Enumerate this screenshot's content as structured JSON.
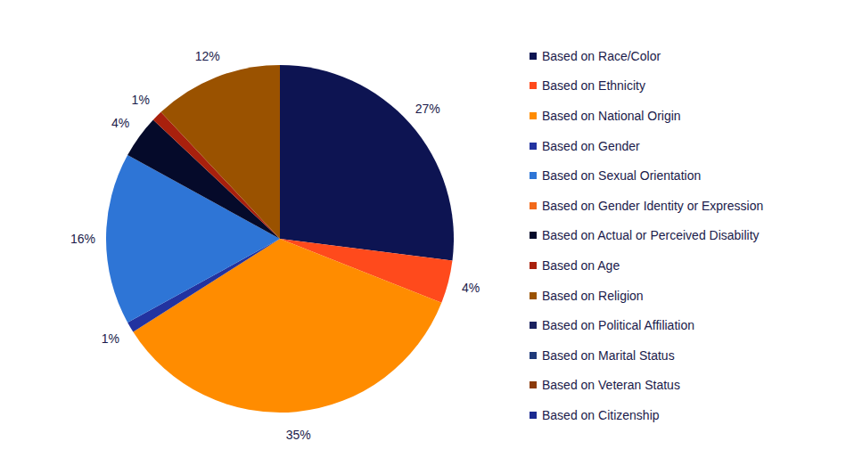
{
  "chart_data": {
    "type": "pie",
    "categories": [
      "Based on Race/Color",
      "Based on Ethnicity",
      "Based on National Origin",
      "Based on Gender",
      "Based on Sexual Orientation",
      "Based on Gender Identity or Expression",
      "Based on Actual or Perceived Disability",
      "Based on Age",
      "Based on Religion",
      "Based on Political Affiliation",
      "Based on Marital Status",
      "Based on Veteran Status",
      "Based on Citizenship"
    ],
    "values": [
      27,
      4,
      35,
      1,
      16,
      0,
      4,
      1,
      12,
      0,
      0,
      0,
      0
    ],
    "value_labels": [
      "27%",
      "4%",
      "35%",
      "1%",
      "16%",
      null,
      "4%",
      "1%",
      "12%",
      null,
      null,
      null,
      null
    ],
    "colors": [
      "#0d1452",
      "#ff4a1c",
      "#ff8c00",
      "#2233a0",
      "#2e75d6",
      "#f26a1b",
      "#050a2a",
      "#a8200d",
      "#9a5200",
      "#1a2260",
      "#1f3a7a",
      "#8b3a0a",
      "#1a2a90"
    ],
    "data_labels": true,
    "legend": "right"
  }
}
